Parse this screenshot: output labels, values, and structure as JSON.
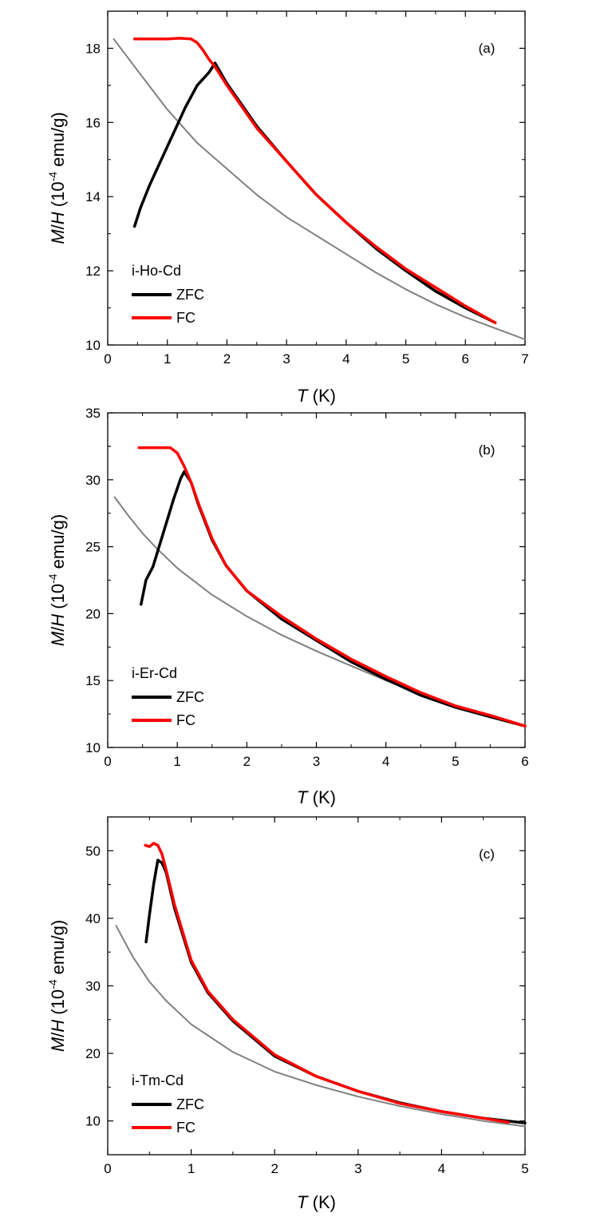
{
  "chart_data": [
    {
      "type": "line",
      "panel": "(a)",
      "xlabel": "K",
      "xlabel_var": "T",
      "ylabel_var_m": "M",
      "ylabel_var_h": "H",
      "ylabel_unit": "emu/g",
      "ylabel_base": "10",
      "ylabel_exp": "-4",
      "xlim": [
        0,
        7
      ],
      "ylim": [
        10,
        19
      ],
      "xticks": [
        0,
        1,
        2,
        3,
        4,
        5,
        6,
        7
      ],
      "yticks": [
        10,
        12,
        14,
        16,
        18
      ],
      "legend_title": "i-Ho-Cd",
      "legend_position": "lower-left",
      "series": [
        {
          "name": "fit",
          "color": "#808080",
          "legend": false,
          "x": [
            0.1,
            0.5,
            1.0,
            1.5,
            2.0,
            2.5,
            3.0,
            3.5,
            4.0,
            4.5,
            5.0,
            5.5,
            6.0,
            6.5,
            7.0
          ],
          "y": [
            18.25,
            17.4,
            16.35,
            15.45,
            14.75,
            14.05,
            13.45,
            12.95,
            12.45,
            11.95,
            11.5,
            11.1,
            10.75,
            10.45,
            10.15
          ]
        },
        {
          "name": "ZFC",
          "color": "#000000",
          "legend": true,
          "x": [
            0.45,
            0.55,
            0.7,
            0.9,
            1.1,
            1.3,
            1.5,
            1.7,
            1.8,
            2.0,
            2.5,
            3.0,
            3.5,
            4.0,
            4.5,
            5.0,
            5.5,
            6.0,
            6.5
          ],
          "y": [
            13.2,
            13.7,
            14.3,
            15.0,
            15.7,
            16.4,
            17.0,
            17.35,
            17.6,
            17.05,
            15.9,
            14.95,
            14.05,
            13.3,
            12.6,
            12.0,
            11.45,
            11.0,
            10.6
          ]
        },
        {
          "name": "FC",
          "color": "#ff0000",
          "legend": true,
          "x": [
            0.45,
            0.8,
            1.0,
            1.2,
            1.4,
            1.5,
            1.6,
            1.7,
            1.8,
            2.0,
            2.5,
            3.0,
            3.5,
            4.0,
            4.5,
            5.0,
            5.5,
            6.0,
            6.5
          ],
          "y": [
            18.25,
            18.25,
            18.25,
            18.27,
            18.25,
            18.15,
            17.95,
            17.7,
            17.5,
            17.0,
            15.85,
            14.95,
            14.05,
            13.3,
            12.65,
            12.05,
            11.55,
            11.05,
            10.6
          ]
        }
      ]
    },
    {
      "type": "line",
      "panel": "(b)",
      "xlabel": "K",
      "xlabel_var": "T",
      "ylabel_var_m": "M",
      "ylabel_var_h": "H",
      "ylabel_unit": "emu/g",
      "ylabel_base": "10",
      "ylabel_exp": "-4",
      "xlim": [
        0,
        6
      ],
      "ylim": [
        10,
        35
      ],
      "xticks": [
        0,
        1,
        2,
        3,
        4,
        5,
        6
      ],
      "yticks": [
        10,
        15,
        20,
        25,
        30,
        35
      ],
      "legend_title": "i-Er-Cd",
      "legend_position": "lower-left",
      "series": [
        {
          "name": "fit",
          "color": "#808080",
          "legend": false,
          "x": [
            0.1,
            0.3,
            0.5,
            0.7,
            1.0,
            1.5,
            2.0,
            2.5,
            3.0,
            3.5,
            4.0,
            4.5,
            5.0,
            5.5,
            6.0
          ],
          "y": [
            28.7,
            27.3,
            26.0,
            24.9,
            23.4,
            21.4,
            19.8,
            18.4,
            17.2,
            16.1,
            15.0,
            14.0,
            13.1,
            12.3,
            11.6
          ]
        },
        {
          "name": "ZFC",
          "color": "#000000",
          "legend": true,
          "x": [
            0.48,
            0.55,
            0.65,
            0.75,
            0.85,
            0.95,
            1.05,
            1.1,
            1.2,
            1.3,
            1.5,
            1.7,
            2.0,
            2.5,
            3.0,
            3.5,
            4.0,
            4.5,
            5.0,
            5.5,
            6.0
          ],
          "y": [
            20.7,
            22.5,
            23.5,
            25.2,
            26.9,
            28.6,
            30.1,
            30.6,
            29.8,
            28.2,
            25.5,
            23.6,
            21.7,
            19.6,
            18.0,
            16.4,
            15.1,
            13.9,
            13.0,
            12.3,
            11.6
          ]
        },
        {
          "name": "FC",
          "color": "#ff0000",
          "legend": true,
          "x": [
            0.45,
            0.7,
            0.9,
            1.0,
            1.1,
            1.2,
            1.3,
            1.5,
            1.7,
            2.0,
            2.5,
            3.0,
            3.5,
            4.0,
            4.5,
            5.0,
            5.5,
            6.0
          ],
          "y": [
            32.4,
            32.4,
            32.4,
            32.0,
            31.0,
            29.8,
            28.3,
            25.6,
            23.6,
            21.7,
            19.8,
            18.1,
            16.6,
            15.3,
            14.1,
            13.1,
            12.4,
            11.6
          ]
        }
      ]
    },
    {
      "type": "line",
      "panel": "(c)",
      "xlabel": "K",
      "xlabel_var": "T",
      "ylabel_var_m": "M",
      "ylabel_var_h": "H",
      "ylabel_unit": "emu/g",
      "ylabel_base": "10",
      "ylabel_exp": "-4",
      "xlim": [
        0,
        5
      ],
      "ylim": [
        5,
        55
      ],
      "xticks": [
        0,
        1,
        2,
        3,
        4,
        5
      ],
      "yticks": [
        10,
        20,
        30,
        40,
        50
      ],
      "legend_title": "i-Tm-Cd",
      "legend_position": "lower-left",
      "series": [
        {
          "name": "fit",
          "color": "#808080",
          "legend": false,
          "x": [
            0.1,
            0.3,
            0.5,
            0.7,
            1.0,
            1.5,
            2.0,
            2.5,
            3.0,
            3.5,
            4.0,
            4.5,
            5.0
          ],
          "y": [
            38.9,
            34.3,
            30.6,
            27.8,
            24.3,
            20.2,
            17.3,
            15.3,
            13.6,
            12.2,
            11.0,
            10.0,
            9.2
          ]
        },
        {
          "name": "ZFC",
          "color": "#000000",
          "legend": true,
          "x": [
            0.46,
            0.5,
            0.55,
            0.6,
            0.65,
            0.7,
            0.8,
            1.0,
            1.2,
            1.5,
            2.0,
            2.5,
            3.0,
            3.5,
            4.0,
            4.5,
            5.0
          ],
          "y": [
            36.5,
            40.5,
            45.0,
            48.6,
            48.2,
            46.8,
            41.5,
            33.5,
            29.0,
            24.8,
            19.6,
            16.6,
            14.4,
            12.7,
            11.4,
            10.4,
            9.7
          ]
        },
        {
          "name": "FC",
          "color": "#ff0000",
          "legend": true,
          "x": [
            0.45,
            0.5,
            0.55,
            0.6,
            0.65,
            0.7,
            0.8,
            1.0,
            1.2,
            1.5,
            2.0,
            2.5,
            3.0,
            3.5,
            4.0,
            4.5,
            4.8
          ],
          "y": [
            50.8,
            50.6,
            51.1,
            50.8,
            49.5,
            47.2,
            42.0,
            33.8,
            29.2,
            25.0,
            19.8,
            16.6,
            14.4,
            12.6,
            11.4,
            10.4,
            9.8
          ]
        }
      ]
    }
  ]
}
